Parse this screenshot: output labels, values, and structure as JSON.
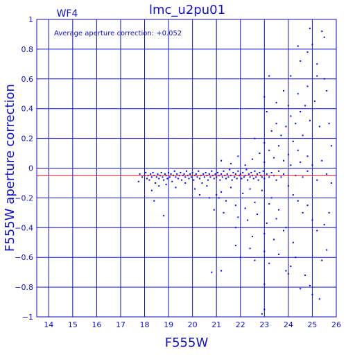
{
  "chart_data": {
    "type": "scatter",
    "title": "lmc_u2pu01",
    "chip_label": "WF4",
    "annotation": "Average aperture correction: +0.052",
    "xlabel": "F555W",
    "ylabel": "F555W aperture correction",
    "xlim": [
      13.5,
      26.0
    ],
    "ylim": [
      -1.0,
      1.0
    ],
    "x_ticks": [
      14,
      15,
      16,
      17,
      18,
      19,
      20,
      21,
      22,
      23,
      24,
      25,
      26
    ],
    "y_ticks": [
      -1,
      -0.8,
      -0.6,
      -0.4,
      -0.2,
      0,
      0.2,
      0.4,
      0.6,
      0.8,
      1
    ],
    "x_tick_labels": [
      "14",
      "15",
      "16",
      "17",
      "18",
      "19",
      "20",
      "21",
      "22",
      "23",
      "24",
      "25",
      "26"
    ],
    "y_tick_labels": [
      "−1",
      "−0.8",
      "−0.6",
      "−0.4",
      "−0.2",
      "0",
      "0.2",
      "0.4",
      "0.6",
      "0.8",
      "1"
    ],
    "grid": true,
    "reference_line_y": -0.05,
    "colors": {
      "axes": "#1010c8",
      "points": "#0000ff",
      "reference_line": "#d42020",
      "background": "#ffffff"
    },
    "points": [
      [
        17.75,
        -0.09
      ],
      [
        17.8,
        -0.04
      ],
      [
        17.9,
        -0.06
      ],
      [
        18.0,
        -0.05
      ],
      [
        18.05,
        -0.03
      ],
      [
        18.1,
        -0.07
      ],
      [
        18.15,
        -0.05
      ],
      [
        18.2,
        -0.08
      ],
      [
        18.25,
        -0.04
      ],
      [
        18.3,
        -0.06
      ],
      [
        18.35,
        -0.03
      ],
      [
        18.4,
        -0.05
      ],
      [
        18.45,
        -0.1
      ],
      [
        18.5,
        -0.06
      ],
      [
        18.55,
        -0.04
      ],
      [
        18.6,
        -0.07
      ],
      [
        18.65,
        -0.05
      ],
      [
        18.7,
        -0.03
      ],
      [
        18.75,
        -0.06
      ],
      [
        18.8,
        -0.08
      ],
      [
        18.85,
        -0.04
      ],
      [
        18.9,
        -0.05
      ],
      [
        18.95,
        -0.07
      ],
      [
        19.0,
        -0.03
      ],
      [
        19.05,
        -0.06
      ],
      [
        19.1,
        -0.04
      ],
      [
        19.15,
        -0.09
      ],
      [
        19.2,
        -0.05
      ],
      [
        19.25,
        -0.02
      ],
      [
        19.3,
        -0.06
      ],
      [
        19.35,
        -0.04
      ],
      [
        19.4,
        -0.07
      ],
      [
        19.45,
        -0.05
      ],
      [
        19.5,
        -0.03
      ],
      [
        19.55,
        -0.08
      ],
      [
        19.6,
        -0.05
      ],
      [
        19.65,
        -0.04
      ],
      [
        19.7,
        -0.06
      ],
      [
        19.75,
        -0.02
      ],
      [
        19.8,
        -0.05
      ],
      [
        19.85,
        -0.07
      ],
      [
        19.9,
        -0.04
      ],
      [
        19.95,
        -0.06
      ],
      [
        20.0,
        -0.03
      ],
      [
        20.05,
        -0.08
      ],
      [
        20.1,
        -0.05
      ],
      [
        20.15,
        -0.04
      ],
      [
        20.2,
        -0.06
      ],
      [
        20.25,
        -0.02
      ],
      [
        20.3,
        -0.07
      ],
      [
        20.35,
        -0.05
      ],
      [
        20.4,
        -0.1
      ],
      [
        20.45,
        -0.04
      ],
      [
        20.5,
        -0.06
      ],
      [
        20.55,
        -0.03
      ],
      [
        20.6,
        -0.05
      ],
      [
        20.65,
        -0.08
      ],
      [
        20.7,
        -0.04
      ],
      [
        20.75,
        -0.06
      ],
      [
        20.8,
        -0.02
      ],
      [
        20.85,
        -0.05
      ],
      [
        20.9,
        -0.07
      ],
      [
        20.95,
        -0.04
      ],
      [
        21.0,
        -0.06
      ],
      [
        21.05,
        -0.03
      ],
      [
        21.1,
        -0.05
      ],
      [
        21.15,
        -0.08
      ],
      [
        21.2,
        -0.04
      ],
      [
        21.25,
        -0.06
      ],
      [
        21.3,
        -0.02
      ],
      [
        21.35,
        -0.05
      ],
      [
        21.4,
        -0.07
      ],
      [
        21.45,
        -0.04
      ],
      [
        21.5,
        -0.06
      ],
      [
        21.55,
        -0.01
      ],
      [
        21.6,
        -0.05
      ],
      [
        21.65,
        -0.08
      ],
      [
        21.7,
        -0.03
      ],
      [
        21.75,
        -0.06
      ],
      [
        21.8,
        -0.04
      ],
      [
        21.85,
        -0.07
      ],
      [
        21.9,
        -0.02
      ],
      [
        21.95,
        -0.05
      ],
      [
        22.0,
        -0.04
      ],
      [
        22.05,
        -0.07
      ],
      [
        22.1,
        -0.03
      ],
      [
        22.15,
        -0.06
      ],
      [
        22.2,
        -0.05
      ],
      [
        22.25,
        -0.01
      ],
      [
        22.3,
        -0.08
      ],
      [
        22.35,
        -0.04
      ],
      [
        22.4,
        -0.06
      ],
      [
        22.45,
        -0.03
      ],
      [
        22.5,
        -0.05
      ],
      [
        22.55,
        -0.07
      ],
      [
        22.6,
        -0.02
      ],
      [
        22.65,
        -0.06
      ],
      [
        22.7,
        -0.04
      ],
      [
        22.75,
        -0.08
      ],
      [
        22.8,
        -0.03
      ],
      [
        22.85,
        -0.05
      ],
      [
        22.9,
        -0.06
      ],
      [
        22.95,
        -0.02
      ],
      [
        23.0,
        -0.07
      ],
      [
        23.1,
        -0.04
      ],
      [
        23.2,
        -0.06
      ],
      [
        23.3,
        -0.03
      ],
      [
        23.4,
        -0.05
      ],
      [
        23.5,
        -0.08
      ],
      [
        23.6,
        -0.02
      ],
      [
        23.7,
        -0.06
      ],
      [
        23.8,
        -0.04
      ],
      [
        18.3,
        -0.15
      ],
      [
        18.6,
        -0.12
      ],
      [
        18.9,
        -0.11
      ],
      [
        19.3,
        -0.13
      ],
      [
        19.7,
        -0.1
      ],
      [
        20.1,
        -0.14
      ],
      [
        20.6,
        -0.12
      ],
      [
        21.0,
        -0.18
      ],
      [
        21.2,
        -0.16
      ],
      [
        21.6,
        -0.13
      ],
      [
        22.1,
        -0.17
      ],
      [
        22.4,
        -0.14
      ],
      [
        22.9,
        -0.15
      ],
      [
        23.3,
        -0.2
      ],
      [
        18.4,
        -0.22
      ],
      [
        20.3,
        -0.18
      ],
      [
        20.7,
        -0.2
      ],
      [
        21.1,
        -0.2
      ],
      [
        21.4,
        -0.22
      ],
      [
        21.8,
        -0.25
      ],
      [
        22.2,
        -0.27
      ],
      [
        22.6,
        -0.23
      ],
      [
        23.2,
        -0.24
      ],
      [
        23.6,
        -0.28
      ],
      [
        20.9,
        -0.28
      ],
      [
        21.3,
        -0.3
      ],
      [
        21.9,
        -0.33
      ],
      [
        22.3,
        -0.35
      ],
      [
        22.7,
        -0.31
      ],
      [
        23.1,
        -0.37
      ],
      [
        23.5,
        -0.34
      ],
      [
        23.9,
        -0.4
      ],
      [
        18.8,
        -0.32
      ],
      [
        21.8,
        -0.4
      ],
      [
        22.5,
        -0.46
      ],
      [
        23.0,
        -0.44
      ],
      [
        23.4,
        -0.48
      ],
      [
        23.8,
        -0.42
      ],
      [
        24.2,
        -0.5
      ],
      [
        21.8,
        -0.52
      ],
      [
        22.4,
        -0.54
      ],
      [
        23.0,
        -0.56
      ],
      [
        23.6,
        -0.58
      ],
      [
        24.3,
        -0.6
      ],
      [
        22.0,
        -0.6
      ],
      [
        22.6,
        -0.62
      ],
      [
        23.2,
        -0.64
      ],
      [
        24.1,
        -0.66
      ],
      [
        20.8,
        -0.7
      ],
      [
        21.2,
        -0.69
      ],
      [
        23.9,
        -0.69
      ],
      [
        24.0,
        -0.71
      ],
      [
        24.7,
        -0.72
      ],
      [
        23.0,
        -0.78
      ],
      [
        24.5,
        -0.81
      ],
      [
        25.0,
        -0.85
      ],
      [
        23.0,
        -0.95
      ],
      [
        22.9,
        -0.98
      ],
      [
        24.9,
        -0.79
      ],
      [
        25.3,
        -0.88
      ],
      [
        21.2,
        0.05
      ],
      [
        21.6,
        0.03
      ],
      [
        21.9,
        0.08
      ],
      [
        22.2,
        0.02
      ],
      [
        22.5,
        0.06
      ],
      [
        22.8,
        0.1
      ],
      [
        23.0,
        0.04
      ],
      [
        23.2,
        0.12
      ],
      [
        23.4,
        0.07
      ],
      [
        23.6,
        0.15
      ],
      [
        23.8,
        0.05
      ],
      [
        24.0,
        0.09
      ],
      [
        24.2,
        0.18
      ],
      [
        24.4,
        0.12
      ],
      [
        24.6,
        0.22
      ],
      [
        24.8,
        0.08
      ],
      [
        22.6,
        0.2
      ],
      [
        23.0,
        0.17
      ],
      [
        23.3,
        0.25
      ],
      [
        23.5,
        0.3
      ],
      [
        23.7,
        0.22
      ],
      [
        23.9,
        0.28
      ],
      [
        24.1,
        0.35
      ],
      [
        24.3,
        0.3
      ],
      [
        24.5,
        0.38
      ],
      [
        24.7,
        0.42
      ],
      [
        24.9,
        0.32
      ],
      [
        25.1,
        0.45
      ],
      [
        25.3,
        0.28
      ],
      [
        23.1,
        0.38
      ],
      [
        23.5,
        0.44
      ],
      [
        23.8,
        0.52
      ],
      [
        24.0,
        0.42
      ],
      [
        24.4,
        0.5
      ],
      [
        24.8,
        0.55
      ],
      [
        25.2,
        0.62
      ],
      [
        25.5,
        0.6
      ],
      [
        23.0,
        0.48
      ],
      [
        23.2,
        0.62
      ],
      [
        24.1,
        0.62
      ],
      [
        24.5,
        0.72
      ],
      [
        24.8,
        0.78
      ],
      [
        25.0,
        0.83
      ],
      [
        25.2,
        0.7
      ],
      [
        24.4,
        0.82
      ],
      [
        24.9,
        0.94
      ],
      [
        25.4,
        0.92
      ],
      [
        25.5,
        0.88
      ],
      [
        25.6,
        0.52
      ],
      [
        25.7,
        0.3
      ],
      [
        25.8,
        0.15
      ],
      [
        25.7,
        -0.3
      ],
      [
        25.6,
        -0.55
      ],
      [
        25.5,
        -0.38
      ],
      [
        25.4,
        -0.62
      ],
      [
        25.8,
        -0.1
      ],
      [
        24.0,
        -0.12
      ],
      [
        24.2,
        -0.18
      ],
      [
        24.4,
        -0.22
      ],
      [
        24.6,
        -0.3
      ],
      [
        24.8,
        -0.25
      ],
      [
        25.0,
        -0.35
      ],
      [
        25.2,
        -0.42
      ],
      [
        24.6,
        -0.06
      ],
      [
        24.8,
        -0.02
      ],
      [
        25.0,
        0.02
      ],
      [
        25.2,
        -0.08
      ],
      [
        25.4,
        0.05
      ],
      [
        25.6,
        -0.04
      ],
      [
        24.1,
        0.02
      ],
      [
        24.3,
        -0.05
      ],
      [
        24.5,
        0.04
      ]
    ]
  }
}
